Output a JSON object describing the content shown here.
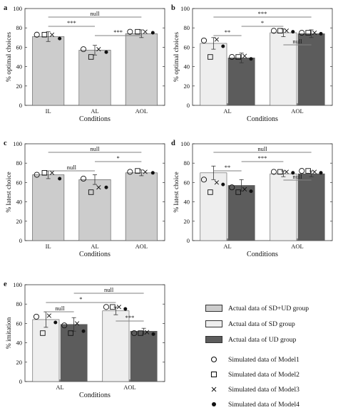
{
  "figure": {
    "panel_letters": [
      "a",
      "b",
      "c",
      "d",
      "e"
    ]
  },
  "colors": {
    "sd_ud_group": "#cccccc",
    "sd_group": "#eeeeee",
    "ud_group": "#5c5c5c",
    "significance_line": "#808080"
  },
  "legend": {
    "groups": [
      {
        "label": "Actual data of SD+UD group",
        "color": "#cccccc"
      },
      {
        "label": "Actual data of SD group",
        "color": "#eeeeee"
      },
      {
        "label": "Actual data of UD group",
        "color": "#5c5c5c"
      }
    ],
    "models": [
      {
        "label": "Simulated data of Model1",
        "marker": "open-circle"
      },
      {
        "label": "Simulated data of Model2",
        "marker": "open-square"
      },
      {
        "label": "Simulated data of Model3",
        "marker": "x-cross"
      },
      {
        "label": "Simulated data of Model4",
        "marker": "filled-dot"
      }
    ]
  },
  "chart_data": [
    {
      "panel": "a",
      "type": "bar",
      "xlabel": "Conditions",
      "ylabel": "% optimal choices",
      "ylim": [
        0,
        100
      ],
      "yticks": [
        0,
        20,
        40,
        60,
        80,
        100
      ],
      "categories": [
        "IL",
        "AL",
        "AOL"
      ],
      "series": [
        {
          "group": "sd_ud_group",
          "values": [
            71,
            57,
            74
          ],
          "errors": [
            5,
            5,
            4
          ],
          "model1": [
            73,
            58,
            76
          ],
          "model2": [
            73,
            50,
            76
          ],
          "model3": [
            73,
            58,
            76
          ],
          "model4": [
            69,
            55,
            75
          ]
        }
      ],
      "significance": [
        {
          "from": "IL",
          "to": "AOL",
          "label": "null"
        },
        {
          "from": "IL",
          "to": "AL",
          "label": "***"
        },
        {
          "from": "AL",
          "to": "AOL",
          "label": "***"
        }
      ]
    },
    {
      "panel": "b",
      "type": "bar",
      "xlabel": "Conditions",
      "ylabel": "% optimal choices",
      "ylim": [
        0,
        100
      ],
      "yticks": [
        0,
        20,
        40,
        60,
        80,
        100
      ],
      "categories": [
        "AL",
        "AOL"
      ],
      "series": [
        {
          "group": "sd_group",
          "values": [
            64,
            75
          ],
          "errors": [
            6,
            4
          ],
          "model1": [
            67,
            77
          ],
          "model2": [
            50,
            77
          ],
          "model3": [
            68,
            77
          ],
          "model4": [
            61,
            76
          ]
        },
        {
          "group": "ud_group",
          "values": [
            49,
            74
          ],
          "errors": [
            5,
            4
          ],
          "model1": [
            50,
            75
          ],
          "model2": [
            50,
            75
          ],
          "model3": [
            51,
            75
          ],
          "model4": [
            48,
            74
          ]
        }
      ],
      "significance": [
        {
          "from": "AL:sd_group",
          "to": "AOL:ud_group",
          "label": "***"
        },
        {
          "from": "AL:ud_group",
          "to": "AOL:sd_group",
          "label": "*"
        },
        {
          "from": "AL:sd_group",
          "to": "AL:ud_group",
          "label": "**"
        },
        {
          "from": "AOL:sd_group",
          "to": "AOL:ud_group",
          "label": "null"
        }
      ]
    },
    {
      "panel": "c",
      "type": "bar",
      "xlabel": "Conditions",
      "ylabel": "% latest choice",
      "ylim": [
        0,
        100
      ],
      "yticks": [
        0,
        20,
        40,
        60,
        80,
        100
      ],
      "categories": [
        "IL",
        "AL",
        "AOL"
      ],
      "series": [
        {
          "group": "sd_ud_group",
          "values": [
            68,
            63,
            70
          ],
          "errors": [
            4,
            5,
            3
          ],
          "model1": [
            68,
            64,
            71
          ],
          "model2": [
            70,
            50,
            72
          ],
          "model3": [
            70,
            55,
            71
          ],
          "model4": [
            64,
            55,
            70
          ]
        }
      ],
      "significance": [
        {
          "from": "IL",
          "to": "AOL",
          "label": "null"
        },
        {
          "from": "AL",
          "to": "AOL",
          "label": "*"
        },
        {
          "from": "IL",
          "to": "AL",
          "label": "null"
        }
      ]
    },
    {
      "panel": "d",
      "type": "bar",
      "xlabel": "Conditions",
      "ylabel": "% latest choice",
      "ylim": [
        0,
        100
      ],
      "yticks": [
        0,
        20,
        40,
        60,
        80,
        100
      ],
      "categories": [
        "AL",
        "AOL"
      ],
      "series": [
        {
          "group": "sd_group",
          "values": [
            70,
            69
          ],
          "errors": [
            7,
            3
          ],
          "model1": [
            63,
            71
          ],
          "model2": [
            50,
            71
          ],
          "model3": [
            60,
            71
          ],
          "model4": [
            58,
            70
          ]
        },
        {
          "group": "ud_group",
          "values": [
            57,
            69
          ],
          "errors": [
            6,
            3
          ],
          "model1": [
            55,
            72
          ],
          "model2": [
            50,
            72
          ],
          "model3": [
            53,
            71
          ],
          "model4": [
            51,
            70
          ]
        }
      ],
      "significance": [
        {
          "from": "AL:sd_group",
          "to": "AOL:ud_group",
          "label": "null"
        },
        {
          "from": "AL:ud_group",
          "to": "AOL:sd_group",
          "label": "***"
        },
        {
          "from": "AL:sd_group",
          "to": "AL:ud_group",
          "label": "**"
        },
        {
          "from": "AOL:sd_group",
          "to": "AOL:ud_group",
          "label": "null"
        }
      ]
    },
    {
      "panel": "e",
      "type": "bar",
      "xlabel": "Conditions",
      "ylabel": "% imitation",
      "ylim": [
        0,
        100
      ],
      "yticks": [
        0,
        20,
        40,
        60,
        80,
        100
      ],
      "categories": [
        "AL",
        "AOL"
      ],
      "series": [
        {
          "group": "sd_group",
          "values": [
            64,
            73
          ],
          "errors": [
            8,
            4
          ],
          "model1": [
            67,
            77
          ],
          "model2": [
            50,
            77
          ],
          "model3": [
            68,
            77
          ],
          "model4": [
            61,
            75
          ]
        },
        {
          "group": "ud_group",
          "values": [
            59,
            52
          ],
          "errors": [
            7,
            3
          ],
          "model1": [
            58,
            50
          ],
          "model2": [
            50,
            50
          ],
          "model3": [
            60,
            51
          ],
          "model4": [
            52,
            49
          ]
        }
      ],
      "significance": [
        {
          "from": "AL:ud_group",
          "to": "AOL:ud_group",
          "label": "null"
        },
        {
          "from": "AL:sd_group",
          "to": "AOL:sd_group",
          "label": "*"
        },
        {
          "from": "AL:sd_group",
          "to": "AL:ud_group",
          "label": "null"
        },
        {
          "from": "AOL:sd_group",
          "to": "AOL:ud_group",
          "label": "***"
        }
      ]
    }
  ]
}
